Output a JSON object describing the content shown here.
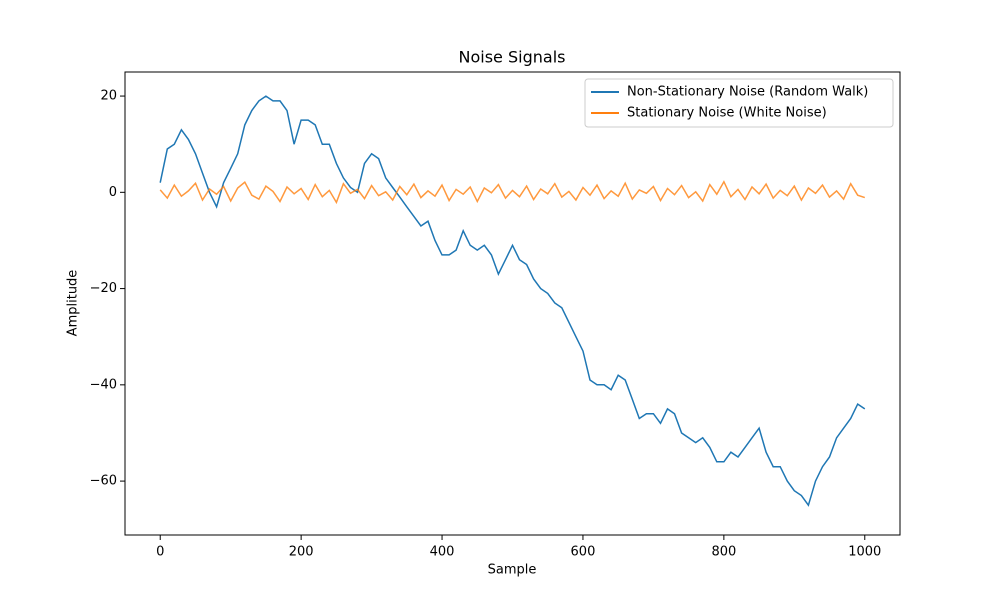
{
  "chart_data": {
    "type": "line",
    "title": "Noise Signals",
    "x_label": "Sample",
    "y_label": "Amplitude",
    "x": [
      0,
      10,
      20,
      30,
      40,
      50,
      60,
      70,
      80,
      90,
      100,
      110,
      120,
      130,
      140,
      150,
      160,
      170,
      180,
      190,
      200,
      210,
      220,
      230,
      240,
      250,
      260,
      270,
      280,
      290,
      300,
      310,
      320,
      330,
      340,
      350,
      360,
      370,
      380,
      390,
      400,
      410,
      420,
      430,
      440,
      450,
      460,
      470,
      480,
      490,
      500,
      510,
      520,
      530,
      540,
      550,
      560,
      570,
      580,
      590,
      600,
      610,
      620,
      630,
      640,
      650,
      660,
      670,
      680,
      690,
      700,
      710,
      720,
      730,
      740,
      750,
      760,
      770,
      780,
      790,
      800,
      810,
      820,
      830,
      840,
      850,
      860,
      870,
      880,
      890,
      900,
      910,
      920,
      930,
      940,
      950,
      960,
      970,
      980,
      990,
      1000
    ],
    "series": [
      {
        "name": "Non-Stationary Noise (Random Walk)",
        "color": "#1f77b4",
        "values": [
          2,
          9,
          10,
          13,
          11,
          8,
          4,
          0,
          -3,
          2,
          5,
          8,
          14,
          17,
          19,
          20,
          19,
          19,
          17,
          10,
          15,
          15,
          14,
          10,
          10,
          6,
          3,
          1,
          0,
          6,
          8,
          7,
          3,
          1,
          -1,
          -3,
          -5,
          -7,
          -6,
          -10,
          -13,
          -13,
          -12,
          -8,
          -11,
          -12,
          -11,
          -13,
          -17,
          -14,
          -11,
          -14,
          -15,
          -18,
          -20,
          -21,
          -23,
          -24,
          -27,
          -30,
          -33,
          -39,
          -40,
          -40,
          -41,
          -38,
          -39,
          -43,
          -47,
          -46,
          -46,
          -48,
          -45,
          -46,
          -50,
          -51,
          -52,
          -51,
          -53,
          -56,
          -56,
          -54,
          -55,
          -53,
          -51,
          -49,
          -54,
          -57,
          -57,
          -60,
          -62,
          -63,
          -65,
          -60,
          -57,
          -55,
          -51,
          -49,
          -47,
          -44,
          -45
        ]
      },
      {
        "name": "Stationary Noise (White Noise)",
        "color": "#ff7f0e",
        "values": [
          0.5,
          -1.2,
          1.5,
          -0.8,
          0.3,
          1.9,
          -1.6,
          0.7,
          -0.4,
          1.2,
          -1.8,
          0.9,
          2.1,
          -0.6,
          -1.4,
          1.3,
          0.2,
          -1.9,
          1.1,
          -0.3,
          0.8,
          -1.5,
          1.6,
          -0.9,
          0.4,
          -2.1,
          1.8,
          -0.2,
          0.6,
          -1.3,
          1.4,
          -0.7,
          0.1,
          -1.6,
          1.2,
          -0.5,
          1.7,
          -1.1,
          0.3,
          -0.8,
          1.5,
          -1.7,
          0.6,
          -0.4,
          1.1,
          -1.9,
          0.9,
          -0.1,
          1.6,
          -1.2,
          0.4,
          -0.9,
          1.3,
          -1.5,
          0.7,
          -0.3,
          1.8,
          -1.0,
          0.2,
          -1.6,
          1.0,
          -0.6,
          1.5,
          -1.3,
          0.3,
          -0.8,
          1.9,
          -1.4,
          0.5,
          -0.2,
          1.2,
          -1.7,
          0.8,
          -0.5,
          1.4,
          -1.1,
          0.1,
          -1.8,
          1.6,
          -0.4,
          2.2,
          -0.9,
          0.6,
          -1.5,
          1.1,
          -0.3,
          1.7,
          -1.2,
          0.4,
          -0.7,
          1.3,
          -1.6,
          0.9,
          -0.2,
          1.5,
          -1.0,
          0.3,
          -1.4,
          1.8,
          -0.6,
          -1.1
        ]
      }
    ],
    "xlim": [
      -50,
      1050
    ],
    "ylim": [
      -71.2,
      25
    ],
    "xticks": [
      0,
      200,
      400,
      600,
      800,
      1000
    ],
    "yticks": [
      {
        "value": -60,
        "label": "−60"
      },
      {
        "value": -40,
        "label": "−40"
      },
      {
        "value": -20,
        "label": "−20"
      },
      0,
      20
    ],
    "legend": "upper right"
  }
}
